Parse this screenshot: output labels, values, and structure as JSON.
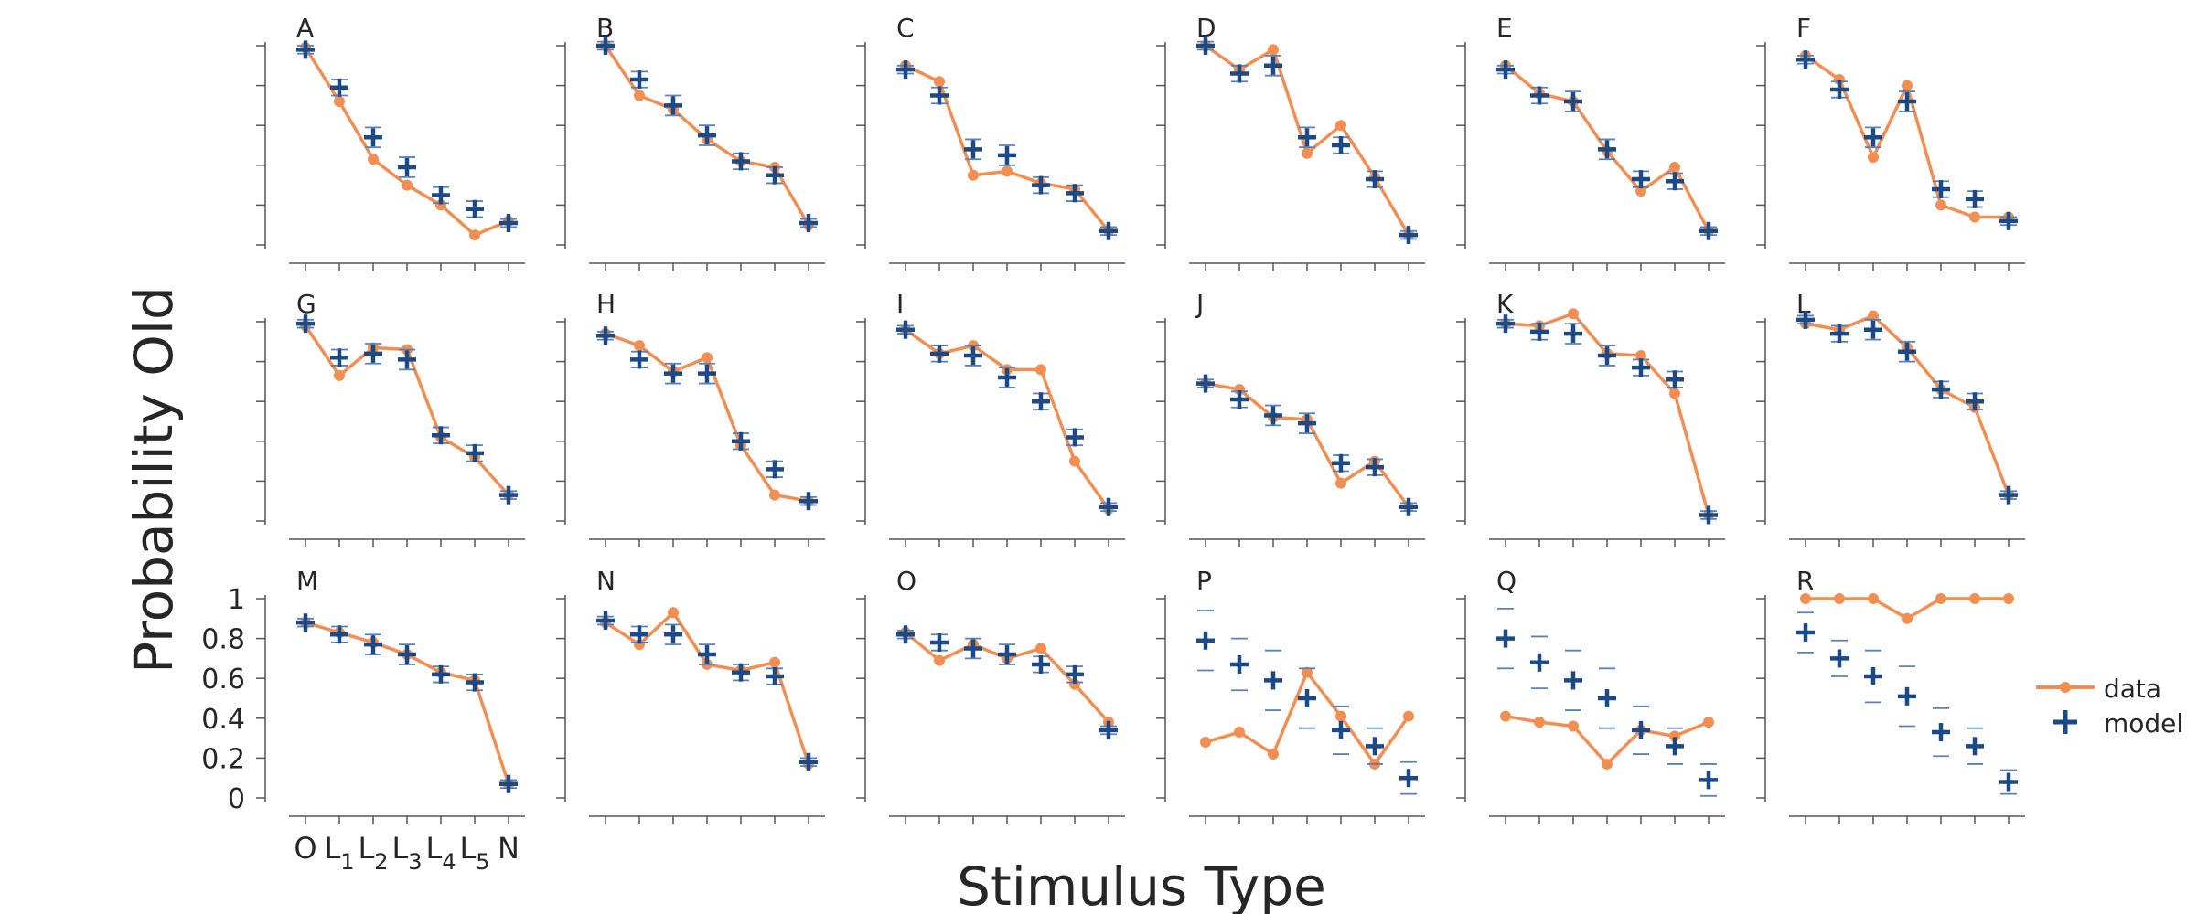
{
  "figure": {
    "ylabel": "Probability Old",
    "xlabel": "Stimulus Type",
    "legend": {
      "data_label": "data",
      "model_label": "model"
    },
    "colors": {
      "data": "#F28E52",
      "model": "#1B4A86",
      "axis": "#555555",
      "text": "#262626"
    }
  },
  "chart_data": {
    "type": "line",
    "layout": "grid of 18 small multiples, 3 rows x 6 columns",
    "categories": [
      "O",
      "L1",
      "L2",
      "L3",
      "L4",
      "L5",
      "N"
    ],
    "category_labels": [
      {
        "base": "O",
        "sub": ""
      },
      {
        "base": "L",
        "sub": "1"
      },
      {
        "base": "L",
        "sub": "2"
      },
      {
        "base": "L",
        "sub": "3"
      },
      {
        "base": "L",
        "sub": "4"
      },
      {
        "base": "L",
        "sub": "5"
      },
      {
        "base": "N",
        "sub": ""
      }
    ],
    "ylim": [
      0,
      1
    ],
    "yticks": [
      "0",
      "0.2",
      "0.4",
      "0.6",
      "0.8",
      "1"
    ],
    "legend_position": "right",
    "series_names": [
      "data",
      "model"
    ],
    "panels": [
      {
        "label": "A",
        "data": [
          0.99,
          0.72,
          0.43,
          0.3,
          0.2,
          0.05,
          0.12
        ],
        "model": [
          0.98,
          0.79,
          0.54,
          0.39,
          0.25,
          0.18,
          0.11
        ],
        "model_err": [
          0.02,
          0.04,
          0.05,
          0.05,
          0.04,
          0.04,
          0.02
        ]
      },
      {
        "label": "B",
        "data": [
          1.0,
          0.75,
          0.68,
          0.53,
          0.42,
          0.39,
          0.1
        ],
        "model": [
          1.0,
          0.83,
          0.7,
          0.55,
          0.42,
          0.35,
          0.11
        ],
        "model_err": [
          0.02,
          0.04,
          0.05,
          0.05,
          0.04,
          0.04,
          0.02
        ]
      },
      {
        "label": "C",
        "data": [
          0.9,
          0.82,
          0.35,
          0.37,
          0.31,
          0.28,
          0.07
        ],
        "model": [
          0.88,
          0.75,
          0.48,
          0.45,
          0.3,
          0.26,
          0.07
        ],
        "model_err": [
          0.02,
          0.04,
          0.05,
          0.05,
          0.04,
          0.04,
          0.02
        ]
      },
      {
        "label": "D",
        "data": [
          1.0,
          0.88,
          0.98,
          0.46,
          0.6,
          0.34,
          0.05
        ],
        "model": [
          1.0,
          0.86,
          0.9,
          0.54,
          0.5,
          0.33,
          0.05
        ],
        "model_err": [
          0.02,
          0.04,
          0.05,
          0.05,
          0.04,
          0.04,
          0.02
        ]
      },
      {
        "label": "E",
        "data": [
          0.9,
          0.76,
          0.72,
          0.47,
          0.27,
          0.39,
          0.07
        ],
        "model": [
          0.88,
          0.75,
          0.72,
          0.48,
          0.33,
          0.32,
          0.07
        ],
        "model_err": [
          0.02,
          0.04,
          0.05,
          0.05,
          0.04,
          0.04,
          0.02
        ]
      },
      {
        "label": "F",
        "data": [
          0.95,
          0.83,
          0.44,
          0.8,
          0.2,
          0.14,
          0.14
        ],
        "model": [
          0.93,
          0.78,
          0.54,
          0.72,
          0.28,
          0.23,
          0.12
        ],
        "model_err": [
          0.02,
          0.04,
          0.05,
          0.05,
          0.04,
          0.04,
          0.02
        ]
      },
      {
        "label": "G",
        "data": [
          0.98,
          0.73,
          0.87,
          0.86,
          0.42,
          0.32,
          0.13
        ],
        "model": [
          0.99,
          0.82,
          0.84,
          0.81,
          0.43,
          0.34,
          0.13
        ],
        "model_err": [
          0.02,
          0.04,
          0.05,
          0.05,
          0.04,
          0.04,
          0.02
        ]
      },
      {
        "label": "H",
        "data": [
          0.94,
          0.88,
          0.75,
          0.82,
          0.38,
          0.13,
          0.1
        ],
        "model": [
          0.93,
          0.81,
          0.74,
          0.74,
          0.4,
          0.26,
          0.1
        ],
        "model_err": [
          0.02,
          0.04,
          0.05,
          0.05,
          0.04,
          0.04,
          0.02
        ]
      },
      {
        "label": "I",
        "data": [
          0.96,
          0.84,
          0.88,
          0.76,
          0.76,
          0.3,
          0.06
        ],
        "model": [
          0.96,
          0.84,
          0.83,
          0.72,
          0.6,
          0.42,
          0.07
        ],
        "model_err": [
          0.02,
          0.04,
          0.05,
          0.05,
          0.04,
          0.04,
          0.02
        ]
      },
      {
        "label": "J",
        "data": [
          0.69,
          0.66,
          0.52,
          0.51,
          0.19,
          0.3,
          0.07
        ],
        "model": [
          0.69,
          0.61,
          0.53,
          0.49,
          0.29,
          0.27,
          0.07
        ],
        "model_err": [
          0.02,
          0.04,
          0.05,
          0.05,
          0.04,
          0.04,
          0.02
        ]
      },
      {
        "label": "K",
        "data": [
          0.99,
          0.98,
          1.04,
          0.84,
          0.83,
          0.64,
          0.03
        ],
        "model": [
          0.99,
          0.95,
          0.94,
          0.83,
          0.77,
          0.71,
          0.03
        ],
        "model_err": [
          0.02,
          0.04,
          0.05,
          0.05,
          0.04,
          0.04,
          0.02
        ]
      },
      {
        "label": "L",
        "data": [
          0.99,
          0.96,
          1.03,
          0.87,
          0.66,
          0.57,
          0.13
        ],
        "model": [
          1.01,
          0.94,
          0.96,
          0.85,
          0.66,
          0.6,
          0.13
        ],
        "model_err": [
          0.02,
          0.04,
          0.05,
          0.05,
          0.04,
          0.04,
          0.02
        ]
      },
      {
        "label": "M",
        "data": [
          0.88,
          0.83,
          0.78,
          0.72,
          0.63,
          0.59,
          0.07
        ],
        "model": [
          0.88,
          0.82,
          0.77,
          0.72,
          0.62,
          0.58,
          0.07
        ],
        "model_err": [
          0.02,
          0.04,
          0.05,
          0.05,
          0.04,
          0.04,
          0.02
        ]
      },
      {
        "label": "N",
        "data": [
          0.88,
          0.77,
          0.93,
          0.67,
          0.64,
          0.68,
          0.17
        ],
        "model": [
          0.89,
          0.82,
          0.82,
          0.72,
          0.63,
          0.61,
          0.18
        ],
        "model_err": [
          0.02,
          0.04,
          0.05,
          0.05,
          0.04,
          0.04,
          0.02
        ]
      },
      {
        "label": "O",
        "data": [
          0.83,
          0.69,
          0.77,
          0.7,
          0.75,
          0.57,
          0.38
        ],
        "model": [
          0.82,
          0.78,
          0.75,
          0.72,
          0.67,
          0.62,
          0.34
        ],
        "model_err": [
          0.02,
          0.04,
          0.05,
          0.05,
          0.04,
          0.04,
          0.02
        ]
      },
      {
        "label": "P",
        "data": [
          0.28,
          0.33,
          0.22,
          0.63,
          0.41,
          0.17,
          0.41
        ],
        "model": [
          0.79,
          0.67,
          0.59,
          0.5,
          0.34,
          0.26,
          0.1
        ],
        "model_err": [
          0.15,
          0.13,
          0.15,
          0.15,
          0.12,
          0.09,
          0.08
        ]
      },
      {
        "label": "Q",
        "data": [
          0.41,
          0.38,
          0.36,
          0.17,
          0.34,
          0.31,
          0.38
        ],
        "model": [
          0.8,
          0.68,
          0.59,
          0.5,
          0.34,
          0.26,
          0.09
        ],
        "model_err": [
          0.15,
          0.13,
          0.15,
          0.15,
          0.12,
          0.09,
          0.08
        ]
      },
      {
        "label": "R",
        "data": [
          1.0,
          1.0,
          1.0,
          0.9,
          1.0,
          1.0,
          1.0
        ],
        "model": [
          0.83,
          0.7,
          0.61,
          0.51,
          0.33,
          0.26,
          0.08
        ],
        "model_err": [
          0.1,
          0.09,
          0.13,
          0.15,
          0.12,
          0.09,
          0.06
        ]
      }
    ]
  }
}
